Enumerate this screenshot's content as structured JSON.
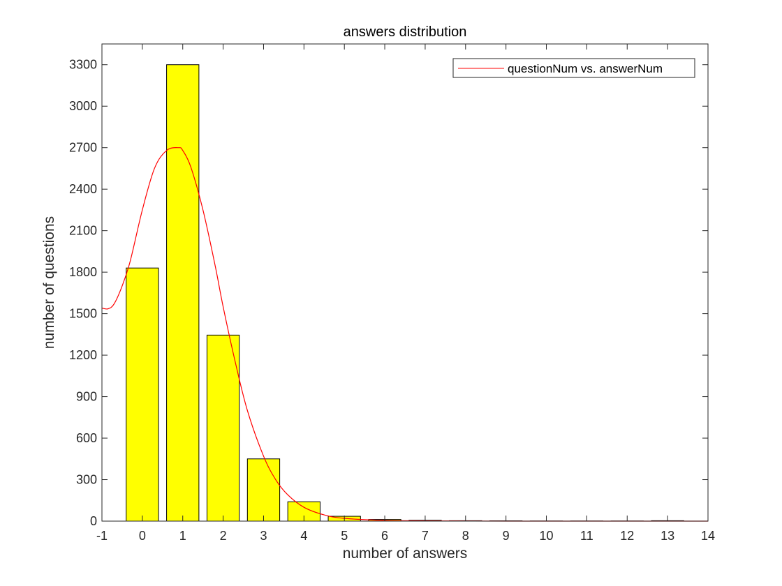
{
  "chart_data": {
    "type": "bar",
    "title": "answers distribution",
    "xlabel": "number of answers",
    "ylabel": "number of questions",
    "xlim": [
      -1,
      14
    ],
    "ylim": [
      0,
      3450
    ],
    "xticks": [
      -1,
      0,
      1,
      2,
      3,
      4,
      5,
      6,
      7,
      8,
      9,
      10,
      11,
      12,
      13,
      14
    ],
    "yticks": [
      0,
      300,
      600,
      900,
      1200,
      1500,
      1800,
      2100,
      2400,
      2700,
      3000,
      3300
    ],
    "grid": false,
    "legend": {
      "placement": "top-right",
      "entries": [
        "questionNum vs. answerNum"
      ]
    },
    "bars": {
      "x": [
        0,
        1,
        2,
        3,
        4,
        5,
        6,
        7,
        8,
        9,
        10,
        11,
        12,
        13
      ],
      "values": [
        1830,
        3300,
        1345,
        450,
        140,
        35,
        12,
        6,
        3,
        2,
        1,
        1,
        1,
        3
      ],
      "color": "#ffff00",
      "edge_color": "#000000"
    },
    "series": [
      {
        "name": "questionNum vs. answerNum",
        "type": "line",
        "color": "#ff0000",
        "x": [
          -1,
          -0.85,
          -0.7,
          -0.5,
          -0.3,
          0,
          0.3,
          0.6,
          0.9,
          1.0,
          1.2,
          1.5,
          1.8,
          2.0,
          2.3,
          2.6,
          3.0,
          3.3,
          3.6,
          4.0,
          4.5,
          5.0,
          6.0,
          7.0,
          8.0,
          9.0,
          10.0,
          11.0,
          12.0,
          13.0,
          14.0
        ],
        "y": [
          1540,
          1535,
          1570,
          1700,
          1880,
          2250,
          2550,
          2680,
          2700,
          2680,
          2560,
          2250,
          1850,
          1550,
          1150,
          800,
          470,
          300,
          190,
          100,
          45,
          20,
          5,
          2,
          1,
          0,
          0,
          0,
          0,
          0,
          0
        ]
      }
    ]
  }
}
